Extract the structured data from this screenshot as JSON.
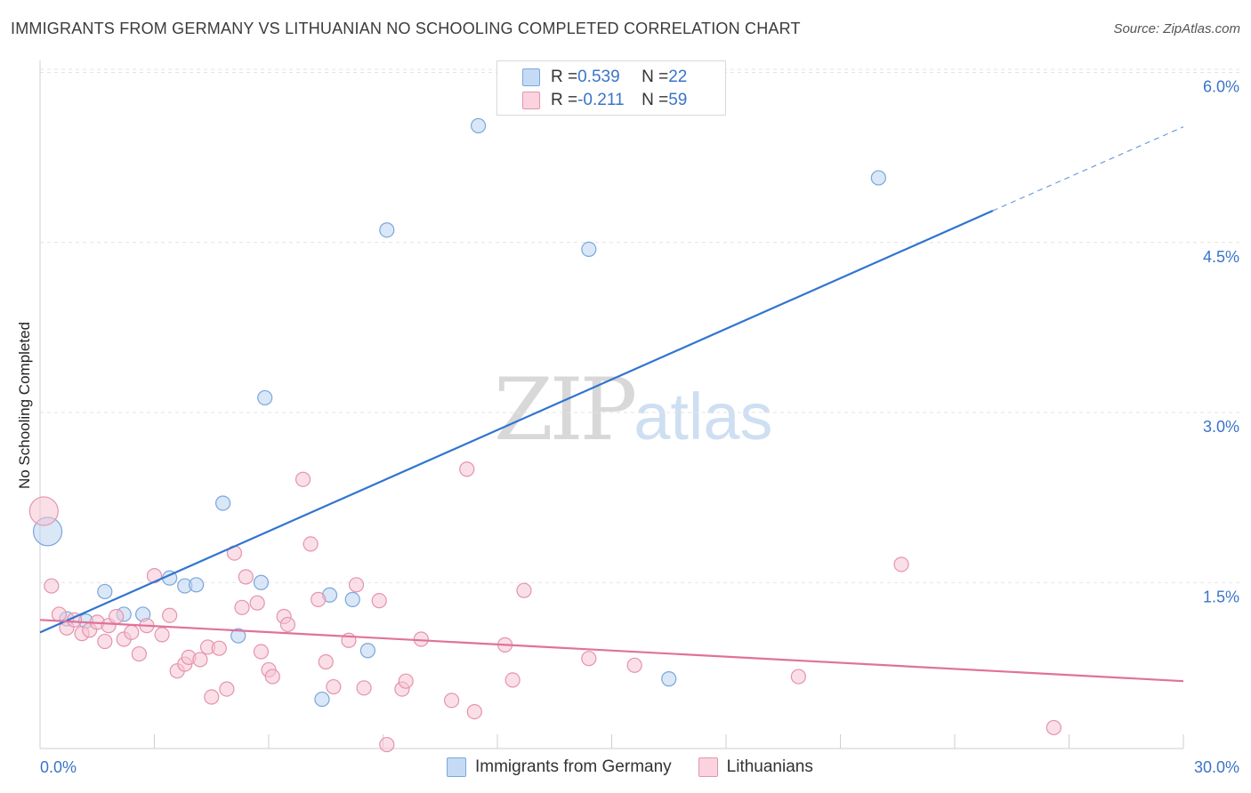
{
  "title": "IMMIGRANTS FROM GERMANY VS LITHUANIAN NO SCHOOLING COMPLETED CORRELATION CHART",
  "source": "Source: ZipAtlas.com",
  "watermark": {
    "zip": "ZIP",
    "atlas": "atlas"
  },
  "colors": {
    "germany_fill": "#b9d3f1",
    "germany_stroke": "#7aa6dd",
    "germany_line": "#2f74d0",
    "lithuania_fill": "#f6c4d3",
    "lithuania_stroke": "#e593ae",
    "lithuania_line": "#e0729a",
    "tick_label": "#3a74c9",
    "grid": "#e3e3e3"
  },
  "correlation_box": {
    "rows": [
      {
        "r_label": "R = ",
        "r_value": "0.539",
        "n_label": "N = ",
        "n_value": "22",
        "series": "germany"
      },
      {
        "r_label": "R = ",
        "r_value": "-0.211",
        "n_label": "N = ",
        "n_value": "59",
        "series": "lithuania"
      }
    ]
  },
  "chart_data": {
    "type": "scatter",
    "title": "IMMIGRANTS FROM GERMANY VS LITHUANIAN NO SCHOOLING COMPLETED CORRELATION CHART",
    "xlabel": "",
    "ylabel": "No Schooling Completed",
    "xlim": [
      0,
      30
    ],
    "ylim": [
      0,
      6.2
    ],
    "x_tick_labels": [
      "0.0%",
      "30.0%"
    ],
    "y_ticks": [
      1.5,
      3.0,
      4.5,
      6.0
    ],
    "y_tick_labels": [
      "1.5%",
      "3.0%",
      "4.5%",
      "6.0%"
    ],
    "grid": true,
    "legend_position": "bottom",
    "series": [
      {
        "name": "Immigrants from Germany",
        "key": "germany",
        "r": 0.539,
        "n": 22,
        "trend": {
          "x0": 0,
          "y0": 1.06,
          "x1": 25.0,
          "y1": 4.78,
          "dash_to_x": 30,
          "dash_to_y": 5.52
        },
        "points": [
          {
            "x": 0.2,
            "y": 1.95,
            "big": true
          },
          {
            "x": 0.7,
            "y": 1.18
          },
          {
            "x": 1.2,
            "y": 1.16
          },
          {
            "x": 1.7,
            "y": 1.42
          },
          {
            "x": 2.2,
            "y": 1.22
          },
          {
            "x": 2.7,
            "y": 1.22
          },
          {
            "x": 3.4,
            "y": 1.54
          },
          {
            "x": 3.8,
            "y": 1.47
          },
          {
            "x": 4.1,
            "y": 1.48
          },
          {
            "x": 4.8,
            "y": 2.2
          },
          {
            "x": 5.2,
            "y": 1.03
          },
          {
            "x": 5.9,
            "y": 3.13
          },
          {
            "x": 5.8,
            "y": 1.5
          },
          {
            "x": 7.4,
            "y": 0.47
          },
          {
            "x": 7.6,
            "y": 1.39
          },
          {
            "x": 8.2,
            "y": 1.35
          },
          {
            "x": 8.6,
            "y": 0.9
          },
          {
            "x": 9.1,
            "y": 4.61
          },
          {
            "x": 11.5,
            "y": 5.53
          },
          {
            "x": 14.4,
            "y": 4.44
          },
          {
            "x": 16.5,
            "y": 0.65
          },
          {
            "x": 22.0,
            "y": 5.07
          }
        ]
      },
      {
        "name": "Lithuanians",
        "key": "lithuania",
        "r": -0.211,
        "n": 59,
        "trend": {
          "x0": 0,
          "y0": 1.17,
          "x1": 30,
          "y1": 0.63
        },
        "points": [
          {
            "x": 0.1,
            "y": 2.13,
            "big": true
          },
          {
            "x": 0.3,
            "y": 1.47
          },
          {
            "x": 0.5,
            "y": 1.22
          },
          {
            "x": 0.7,
            "y": 1.1
          },
          {
            "x": 0.9,
            "y": 1.17
          },
          {
            "x": 1.1,
            "y": 1.05
          },
          {
            "x": 1.3,
            "y": 1.08
          },
          {
            "x": 1.5,
            "y": 1.15
          },
          {
            "x": 1.7,
            "y": 0.98
          },
          {
            "x": 1.8,
            "y": 1.12
          },
          {
            "x": 2.0,
            "y": 1.2
          },
          {
            "x": 2.2,
            "y": 1.0
          },
          {
            "x": 2.4,
            "y": 1.06
          },
          {
            "x": 2.6,
            "y": 0.87
          },
          {
            "x": 2.8,
            "y": 1.12
          },
          {
            "x": 3.0,
            "y": 1.56
          },
          {
            "x": 3.2,
            "y": 1.04
          },
          {
            "x": 3.4,
            "y": 1.21
          },
          {
            "x": 3.6,
            "y": 0.72
          },
          {
            "x": 3.8,
            "y": 0.78
          },
          {
            "x": 3.9,
            "y": 0.84
          },
          {
            "x": 4.2,
            "y": 0.82
          },
          {
            "x": 4.4,
            "y": 0.93
          },
          {
            "x": 4.5,
            "y": 0.49
          },
          {
            "x": 4.7,
            "y": 0.92
          },
          {
            "x": 4.9,
            "y": 0.56
          },
          {
            "x": 5.1,
            "y": 1.76
          },
          {
            "x": 5.3,
            "y": 1.28
          },
          {
            "x": 5.4,
            "y": 1.55
          },
          {
            "x": 5.7,
            "y": 1.32
          },
          {
            "x": 5.8,
            "y": 0.89
          },
          {
            "x": 6.0,
            "y": 0.73
          },
          {
            "x": 6.1,
            "y": 0.67
          },
          {
            "x": 6.4,
            "y": 1.2
          },
          {
            "x": 6.5,
            "y": 1.13
          },
          {
            "x": 6.9,
            "y": 2.41
          },
          {
            "x": 7.1,
            "y": 1.84
          },
          {
            "x": 7.3,
            "y": 1.35
          },
          {
            "x": 7.5,
            "y": 0.8
          },
          {
            "x": 7.7,
            "y": 0.58
          },
          {
            "x": 8.1,
            "y": 0.99
          },
          {
            "x": 8.3,
            "y": 1.48
          },
          {
            "x": 8.5,
            "y": 0.57
          },
          {
            "x": 8.9,
            "y": 1.34
          },
          {
            "x": 9.1,
            "y": 0.07
          },
          {
            "x": 9.5,
            "y": 0.56
          },
          {
            "x": 9.6,
            "y": 0.63
          },
          {
            "x": 10.0,
            "y": 1.0
          },
          {
            "x": 10.8,
            "y": 0.46
          },
          {
            "x": 11.2,
            "y": 2.5
          },
          {
            "x": 11.4,
            "y": 0.36
          },
          {
            "x": 12.2,
            "y": 0.95
          },
          {
            "x": 12.4,
            "y": 0.64
          },
          {
            "x": 12.7,
            "y": 1.43
          },
          {
            "x": 14.4,
            "y": 0.83
          },
          {
            "x": 15.6,
            "y": 0.77
          },
          {
            "x": 19.9,
            "y": 0.67
          },
          {
            "x": 22.6,
            "y": 1.66
          },
          {
            "x": 26.6,
            "y": 0.22
          }
        ]
      }
    ]
  }
}
